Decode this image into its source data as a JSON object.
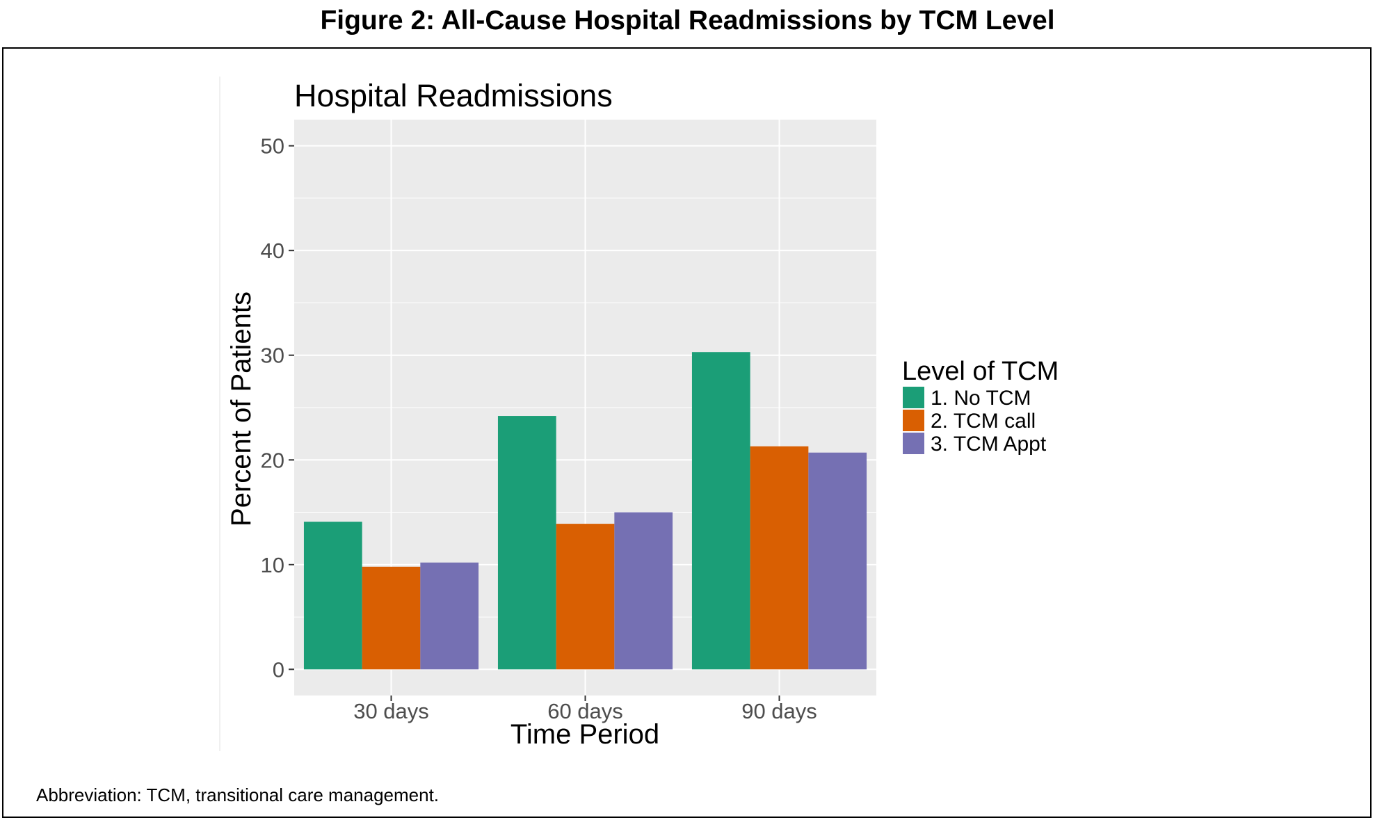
{
  "figure": {
    "title": "Figure 2: All-Cause Hospital Readmissions by TCM Level",
    "footnote": "Abbreviation: TCM, transitional care management."
  },
  "chart_data": {
    "type": "bar",
    "title": "Hospital Readmissions",
    "xlabel": "Time Period",
    "ylabel": "Percent of Patients",
    "categories": [
      "30 days",
      "60 days",
      "90 days"
    ],
    "series": [
      {
        "name": "1. No TCM",
        "color": "#1b9e77",
        "values": [
          14.1,
          24.2,
          30.3
        ]
      },
      {
        "name": "2. TCM call",
        "color": "#d95f02",
        "values": [
          9.8,
          13.9,
          21.3
        ]
      },
      {
        "name": "3. TCM Appt",
        "color": "#7570b3",
        "values": [
          10.2,
          15.0,
          20.7
        ]
      }
    ],
    "ylim": [
      -2.5,
      52.5
    ],
    "yticks": [
      0,
      10,
      20,
      30,
      40,
      50
    ],
    "grid": true,
    "legend_title": "Level of TCM",
    "legend_position": "right"
  }
}
